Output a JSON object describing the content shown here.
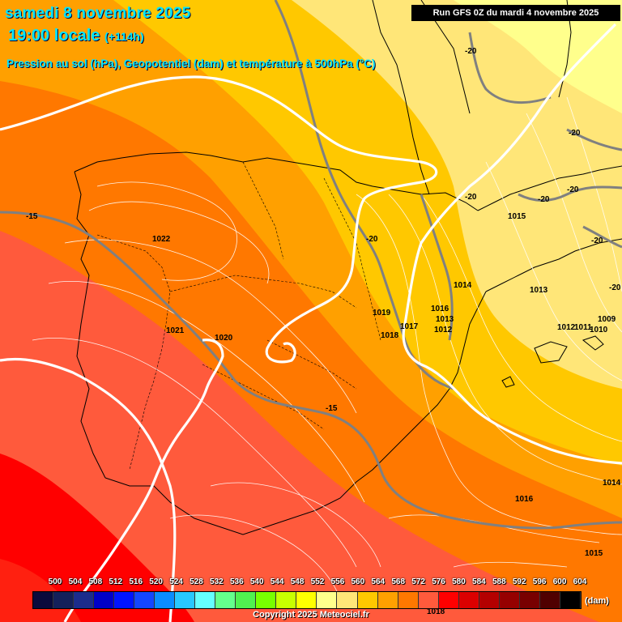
{
  "header": {
    "date_line": "samedi 8 novembre 2025",
    "time_line": "19:00",
    "time_suffix": "locale",
    "lead": "(+114h)",
    "description": "Pression au sol (hPa), Geopotentiel (dam) et température à 500hPa (°C)",
    "run": "Run GFS 0Z du mardi 4 novembre 2025"
  },
  "map_labels": {
    "pressure": [
      "1022",
      "1021",
      "1020",
      "1019",
      "1018",
      "1017",
      "1016",
      "1013",
      "1012",
      "1014",
      "1015",
      "1013",
      "1012",
      "1011",
      "1010",
      "1009",
      "1016",
      "1015",
      "1014",
      "1018"
    ],
    "temperature": [
      "-15",
      "-15",
      "-20",
      "-20",
      "-20",
      "-20",
      "-20",
      "-20",
      "-20",
      "-20"
    ]
  },
  "legend": {
    "values": [
      "500",
      "504",
      "508",
      "512",
      "516",
      "520",
      "524",
      "528",
      "532",
      "536",
      "540",
      "544",
      "548",
      "552",
      "556",
      "560",
      "564",
      "568",
      "572",
      "576",
      "580",
      "584",
      "588",
      "592",
      "596",
      "600",
      "604"
    ],
    "colors": [
      "#0a0a3c",
      "#14205a",
      "#1c2c8c",
      "#0000c8",
      "#0014ff",
      "#1446ff",
      "#0a8cff",
      "#28c8ff",
      "#64ffff",
      "#64ff8c",
      "#50f050",
      "#78ff00",
      "#c8ff00",
      "#ffff00",
      "#ffff8c",
      "#ffe678",
      "#ffc800",
      "#ffa000",
      "#ff7800",
      "#ff5a3c",
      "#ff0000",
      "#dc0000",
      "#b40000",
      "#960000",
      "#780000",
      "#500000",
      "#000000"
    ],
    "unit": "(dam)"
  },
  "copyright": "Copyright 2025 Meteociel.fr"
}
